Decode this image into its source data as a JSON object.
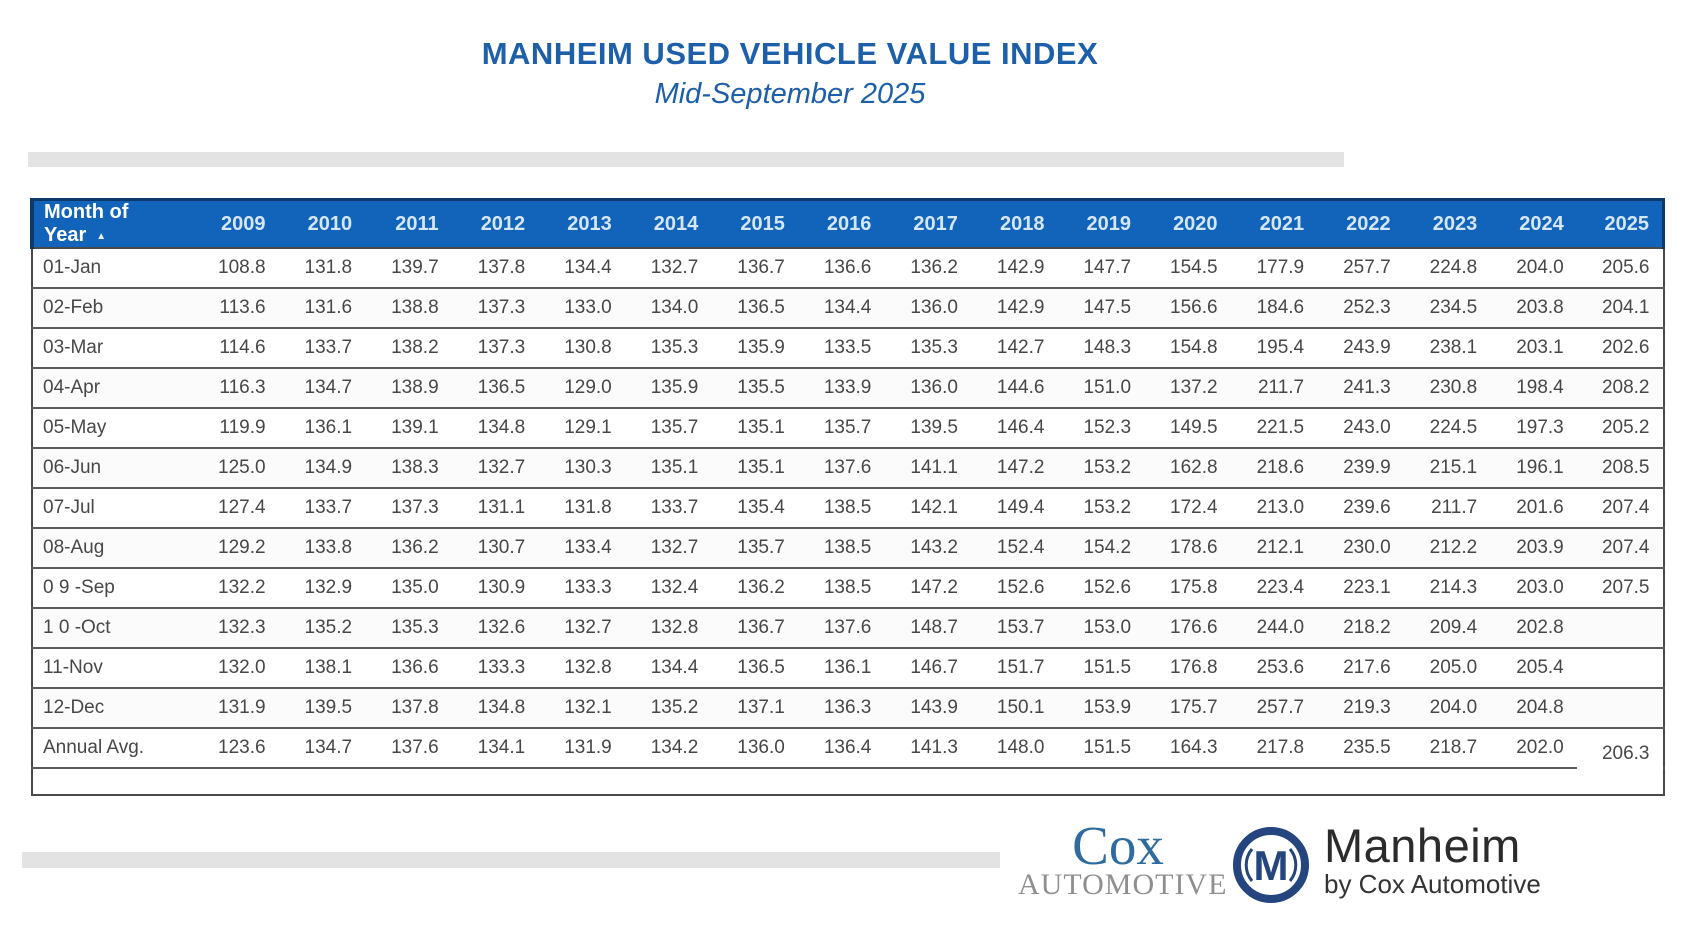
{
  "header": {
    "title": "MANHEIM USED VEHICLE VALUE INDEX",
    "subtitle": "Mid-September 2025"
  },
  "table": {
    "month_header": "Month of Year",
    "sort_icon": "▲",
    "years": [
      "2009",
      "2010",
      "2011",
      "2012",
      "2013",
      "2014",
      "2015",
      "2016",
      "2017",
      "2018",
      "2019",
      "2020",
      "2021",
      "2022",
      "2023",
      "2024",
      "2025"
    ],
    "rows": [
      {
        "label": "01-Jan",
        "values": [
          "108.8",
          "131.8",
          "139.7",
          "137.8",
          "134.4",
          "132.7",
          "136.7",
          "136.6",
          "136.2",
          "142.9",
          "147.7",
          "154.5",
          "177.9",
          "257.7",
          "224.8",
          "204.0",
          "205.6"
        ]
      },
      {
        "label": "02-Feb",
        "values": [
          "113.6",
          "131.6",
          "138.8",
          "137.3",
          "133.0",
          "134.0",
          "136.5",
          "134.4",
          "136.0",
          "142.9",
          "147.5",
          "156.6",
          "184.6",
          "252.3",
          "234.5",
          "203.8",
          "204.1"
        ]
      },
      {
        "label": "03-Mar",
        "values": [
          "114.6",
          "133.7",
          "138.2",
          "137.3",
          "130.8",
          "135.3",
          "135.9",
          "133.5",
          "135.3",
          "142.7",
          "148.3",
          "154.8",
          "195.4",
          "243.9",
          "238.1",
          "203.1",
          "202.6"
        ]
      },
      {
        "label": "04-Apr",
        "values": [
          "116.3",
          "134.7",
          "138.9",
          "136.5",
          "129.0",
          "135.9",
          "135.5",
          "133.9",
          "136.0",
          "144.6",
          "151.0",
          "137.2",
          "211.7",
          "241.3",
          "230.8",
          "198.4",
          "208.2"
        ]
      },
      {
        "label": "05-May",
        "values": [
          "119.9",
          "136.1",
          "139.1",
          "134.8",
          "129.1",
          "135.7",
          "135.1",
          "135.7",
          "139.5",
          "146.4",
          "152.3",
          "149.5",
          "221.5",
          "243.0",
          "224.5",
          "197.3",
          "205.2"
        ]
      },
      {
        "label": "06-Jun",
        "values": [
          "125.0",
          "134.9",
          "138.3",
          "132.7",
          "130.3",
          "135.1",
          "135.1",
          "137.6",
          "141.1",
          "147.2",
          "153.2",
          "162.8",
          "218.6",
          "239.9",
          "215.1",
          "196.1",
          "208.5"
        ]
      },
      {
        "label": "07-Jul",
        "values": [
          "127.4",
          "133.7",
          "137.3",
          "131.1",
          "131.8",
          "133.7",
          "135.4",
          "138.5",
          "142.1",
          "149.4",
          "153.2",
          "172.4",
          "213.0",
          "239.6",
          "211.7",
          "201.6",
          "207.4"
        ]
      },
      {
        "label": "08-Aug",
        "values": [
          "129.2",
          "133.8",
          "136.2",
          "130.7",
          "133.4",
          "132.7",
          "135.7",
          "138.5",
          "143.2",
          "152.4",
          "154.2",
          "178.6",
          "212.1",
          "230.0",
          "212.2",
          "203.9",
          "207.4"
        ]
      },
      {
        "label": "0 9 -Sep",
        "values": [
          "132.2",
          "132.9",
          "135.0",
          "130.9",
          "133.3",
          "132.4",
          "136.2",
          "138.5",
          "147.2",
          "152.6",
          "152.6",
          "175.8",
          "223.4",
          "223.1",
          "214.3",
          "203.0",
          "207.5"
        ]
      },
      {
        "label": "1 0 -Oct",
        "values": [
          "132.3",
          "135.2",
          "135.3",
          "132.6",
          "132.7",
          "132.8",
          "136.7",
          "137.6",
          "148.7",
          "153.7",
          "153.0",
          "176.6",
          "244.0",
          "218.2",
          "209.4",
          "202.8",
          ""
        ]
      },
      {
        "label": "11-Nov",
        "values": [
          "132.0",
          "138.1",
          "136.6",
          "133.3",
          "132.8",
          "134.4",
          "136.5",
          "136.1",
          "146.7",
          "151.7",
          "151.5",
          "176.8",
          "253.6",
          "217.6",
          "205.0",
          "205.4",
          ""
        ]
      },
      {
        "label": "12-Dec",
        "values": [
          "131.9",
          "139.5",
          "137.8",
          "134.8",
          "132.1",
          "135.2",
          "137.1",
          "136.3",
          "143.9",
          "150.1",
          "153.9",
          "175.7",
          "257.7",
          "219.3",
          "204.0",
          "204.8",
          ""
        ]
      },
      {
        "label": "Annual Avg.",
        "values": [
          "123.6",
          "134.7",
          "137.6",
          "134.1",
          "131.9",
          "134.2",
          "136.0",
          "136.4",
          "141.3",
          "148.0",
          "151.5",
          "164.3",
          "217.8",
          "235.5",
          "218.7",
          "202.0",
          "206.3"
        ]
      }
    ],
    "offset_cell": {
      "row": 12,
      "col": 16
    },
    "has_trailing_empty_row": true
  },
  "footer": {
    "cox": {
      "line1": "Cox",
      "line2": "AUTOMOTIVE"
    },
    "manheim": {
      "monogram": "M",
      "name": "Manheim",
      "tagline": "by Cox Automotive"
    }
  },
  "colors": {
    "header_bg": "#1164ba",
    "header_navy": "#0e3a6b",
    "title_blue": "#1d5fa8",
    "bar_gray": "#e3e3e3",
    "cox_blue": "#2e6b9e",
    "cox_gray": "#8f8f8f",
    "manheim_navy": "#24457e"
  }
}
